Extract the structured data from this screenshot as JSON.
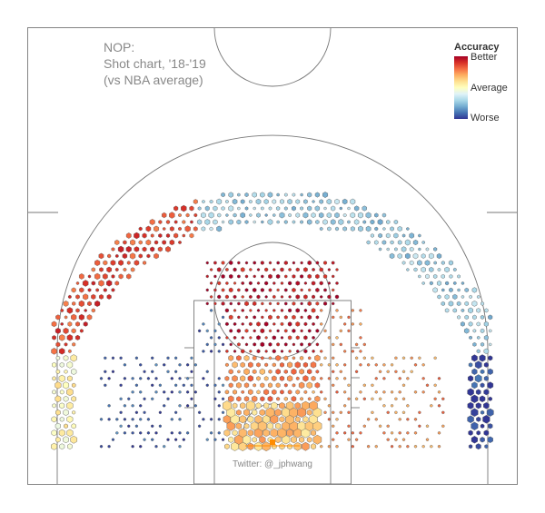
{
  "title": {
    "line1": "NOP:",
    "line2": "Shot chart, '18-'19",
    "line3": "(vs NBA average)"
  },
  "legend": {
    "title": "Accuracy",
    "better": "Better",
    "average": "Average",
    "worse": "Worse",
    "colorscale": [
      "#313695",
      "#4575b4",
      "#74add1",
      "#abd9e9",
      "#e0f3f8",
      "#ffffbf",
      "#fee090",
      "#fdae61",
      "#f46d43",
      "#d73027",
      "#a50026"
    ]
  },
  "credit": "Twitter: @_jphwang",
  "colors": {
    "court_line": "#777777",
    "hex_stroke": "#555555",
    "rim": "#ff8c00"
  },
  "chart_data": {
    "type": "heatmap",
    "subtype": "hexbin shot chart",
    "coordinate_units": "feet from basket (x: left-right, y: toward halfcourt)",
    "value_meaning": "accuracy relative to NBA average, -1 worse to +1 better",
    "size_meaning": "relative shot frequency (0-1)",
    "regions": [
      {
        "name": "left-corner-three",
        "x": [
          -23,
          -20.5
        ],
        "y": [
          -4,
          9
        ],
        "accuracy": 0.05,
        "size": 0.65
      },
      {
        "name": "right-corner-three",
        "x": [
          20.5,
          23
        ],
        "y": [
          -4,
          9
        ],
        "accuracy": -0.95,
        "size": 0.7
      },
      {
        "name": "left-wing-three",
        "x": [
          -23,
          -8
        ],
        "y": [
          9,
          26
        ],
        "accuracy": 0.7,
        "size": 0.55
      },
      {
        "name": "top-key-three",
        "x": [
          -8,
          10
        ],
        "y": [
          22,
          30
        ],
        "accuracy": -0.45,
        "size": 0.5
      },
      {
        "name": "right-wing-three",
        "x": [
          10,
          23
        ],
        "y": [
          9,
          26
        ],
        "accuracy": -0.45,
        "size": 0.5
      },
      {
        "name": "left-midrange",
        "x": [
          -18,
          -5
        ],
        "y": [
          -3,
          14
        ],
        "accuracy": -0.85,
        "size": 0.22
      },
      {
        "name": "right-midrange",
        "x": [
          5,
          18
        ],
        "y": [
          -3,
          14
        ],
        "accuracy": 0.5,
        "size": 0.22
      },
      {
        "name": "elbows-free-throw",
        "x": [
          -7,
          7
        ],
        "y": [
          9,
          19
        ],
        "accuracy": 0.9,
        "size": 0.4
      },
      {
        "name": "upper-paint",
        "x": [
          -7,
          7
        ],
        "y": [
          4,
          9
        ],
        "accuracy": 0.5,
        "size": 0.55
      },
      {
        "name": "restricted-area",
        "x": [
          -5,
          5
        ],
        "y": [
          -2,
          4
        ],
        "accuracy": 0.3,
        "size": 0.95
      }
    ]
  }
}
